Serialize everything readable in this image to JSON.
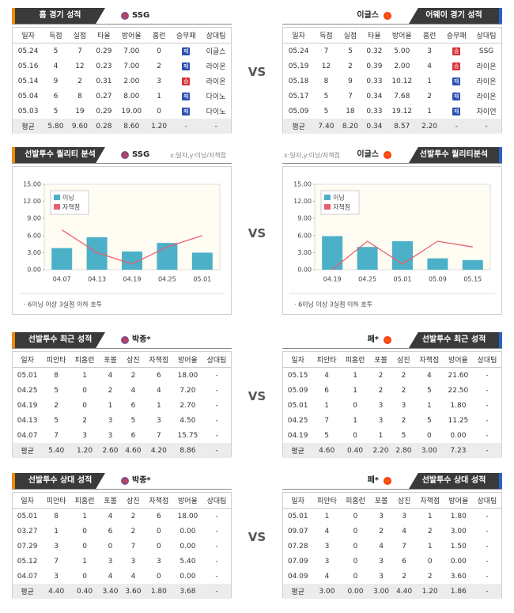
{
  "vs_label": "VS",
  "sections": [
    {
      "left": {
        "tab": "홈 경기 성적",
        "team": "SSG",
        "table": {
          "columns": [
            "일자",
            "득점",
            "실점",
            "타율",
            "방어율",
            "홈런",
            "승무패",
            "상대팀"
          ],
          "rows": [
            [
              "05.24",
              "5",
              "7",
              "0.29",
              "7.00",
              "0",
              {
                "text": "패",
                "color": "#2b4fb0"
              },
              "이글스"
            ],
            [
              "05.16",
              "4",
              "12",
              "0.23",
              "7.00",
              "2",
              {
                "text": "패",
                "color": "#2b4fb0"
              },
              "라이온"
            ],
            [
              "05.14",
              "9",
              "2",
              "0.31",
              "2.00",
              "3",
              {
                "text": "승",
                "color": "#d8323a"
              },
              "라이온"
            ],
            [
              "05.04",
              "6",
              "8",
              "0.27",
              "8.00",
              "1",
              {
                "text": "패",
                "color": "#2b4fb0"
              },
              "다이노"
            ],
            [
              "05.03",
              "5",
              "19",
              "0.29",
              "19.00",
              "0",
              {
                "text": "패",
                "color": "#2b4fb0"
              },
              "다이노"
            ],
            [
              "평균",
              "5.80",
              "9.60",
              "0.28",
              "8.60",
              "1.20",
              "-",
              "-"
            ]
          ]
        }
      },
      "right": {
        "tab": "어웨이 경기 성적",
        "team": "이글스",
        "table": {
          "columns": [
            "일자",
            "득점",
            "실점",
            "타율",
            "방어율",
            "홈런",
            "승무패",
            "상대팀"
          ],
          "rows": [
            [
              "05.24",
              "7",
              "5",
              "0.32",
              "5.00",
              "3",
              {
                "text": "승",
                "color": "#d8323a"
              },
              "SSG"
            ],
            [
              "05.19",
              "12",
              "2",
              "0.39",
              "2.00",
              "4",
              {
                "text": "승",
                "color": "#d8323a"
              },
              "라이온"
            ],
            [
              "05.18",
              "8",
              "9",
              "0.33",
              "10.12",
              "1",
              {
                "text": "패",
                "color": "#2b4fb0"
              },
              "라이온"
            ],
            [
              "05.17",
              "5",
              "7",
              "0.34",
              "7.68",
              "2",
              {
                "text": "패",
                "color": "#2b4fb0"
              },
              "라이온"
            ],
            [
              "05.09",
              "5",
              "18",
              "0.33",
              "19.12",
              "1",
              {
                "text": "패",
                "color": "#2b4fb0"
              },
              "자이언"
            ],
            [
              "평균",
              "7.40",
              "8.20",
              "0.34",
              "8.57",
              "2.20",
              "-",
              "-"
            ]
          ]
        }
      }
    },
    {
      "left": {
        "tab": "선발투수 퀄리티 분석",
        "team": "SSG",
        "axis_note": "x:일자,y:이닝/자책점",
        "note": "· 6이닝 이상 3실점 이하 호투"
      },
      "right": {
        "tab": "선발투수 퀄리티분석",
        "team": "이글스",
        "axis_note": "x:일자,y:이닝/자책점",
        "note": "· 6이닝 이상 3실점 이하 호투"
      }
    },
    {
      "left": {
        "tab": "선발투수 최근 성적",
        "team": "박종*",
        "table": {
          "columns": [
            "일자",
            "피안타",
            "피홈런",
            "포볼",
            "삼진",
            "자책점",
            "방어율",
            "상대팀"
          ],
          "rows": [
            [
              "05.01",
              "8",
              "1",
              "4",
              "2",
              "6",
              "18.00",
              "-"
            ],
            [
              "04.25",
              "5",
              "0",
              "2",
              "4",
              "4",
              "7.20",
              "-"
            ],
            [
              "04.19",
              "2",
              "0",
              "1",
              "6",
              "1",
              "2.70",
              "-"
            ],
            [
              "04.13",
              "5",
              "2",
              "3",
              "5",
              "3",
              "4.50",
              "-"
            ],
            [
              "04.07",
              "7",
              "3",
              "3",
              "6",
              "7",
              "15.75",
              "-"
            ],
            [
              "평균",
              "5.40",
              "1.20",
              "2.60",
              "4.60",
              "4.20",
              "8.86",
              "-"
            ]
          ]
        }
      },
      "right": {
        "tab": "선발투수 최근 성적",
        "team": "페*",
        "table": {
          "columns": [
            "일자",
            "피안타",
            "피홈런",
            "포볼",
            "삼진",
            "자책점",
            "방어율",
            "상대팀"
          ],
          "rows": [
            [
              "05.15",
              "4",
              "1",
              "2",
              "2",
              "4",
              "21.60",
              "-"
            ],
            [
              "05.09",
              "6",
              "1",
              "2",
              "2",
              "5",
              "22.50",
              "-"
            ],
            [
              "05.01",
              "1",
              "0",
              "3",
              "3",
              "1",
              "1.80",
              "-"
            ],
            [
              "04.25",
              "7",
              "1",
              "3",
              "2",
              "5",
              "11.25",
              "-"
            ],
            [
              "04.19",
              "5",
              "0",
              "1",
              "5",
              "0",
              "0.00",
              "-"
            ],
            [
              "평균",
              "4.60",
              "0.40",
              "2.20",
              "2.80",
              "3.00",
              "7.23",
              "-"
            ]
          ]
        }
      }
    },
    {
      "left": {
        "tab": "선발투수 상대 성적",
        "team": "박종*",
        "table": {
          "columns": [
            "일자",
            "피안타",
            "피홈런",
            "포볼",
            "삼진",
            "자책점",
            "방어율",
            "상대팀"
          ],
          "rows": [
            [
              "05.01",
              "8",
              "1",
              "4",
              "2",
              "6",
              "18.00",
              "-"
            ],
            [
              "03.27",
              "1",
              "0",
              "6",
              "2",
              "0",
              "0.00",
              "-"
            ],
            [
              "07.29",
              "3",
              "0",
              "0",
              "7",
              "0",
              "0.00",
              "-"
            ],
            [
              "05.12",
              "7",
              "1",
              "3",
              "3",
              "3",
              "5.40",
              "-"
            ],
            [
              "04.07",
              "3",
              "0",
              "4",
              "4",
              "0",
              "0.00",
              "-"
            ],
            [
              "평균",
              "4.40",
              "0.40",
              "3.40",
              "3.60",
              "1.80",
              "3.68",
              "-"
            ]
          ]
        }
      },
      "right": {
        "tab": "선발투수 상대 성적",
        "team": "페*",
        "table": {
          "columns": [
            "일자",
            "피안타",
            "피홈런",
            "포볼",
            "삼진",
            "자책점",
            "방어율",
            "상대팀"
          ],
          "rows": [
            [
              "05.01",
              "1",
              "0",
              "3",
              "3",
              "1",
              "1.80",
              "-"
            ],
            [
              "09.07",
              "4",
              "0",
              "2",
              "4",
              "2",
              "3.00",
              "-"
            ],
            [
              "07.28",
              "3",
              "0",
              "4",
              "7",
              "1",
              "1.50",
              "-"
            ],
            [
              "07.09",
              "3",
              "0",
              "3",
              "6",
              "0",
              "0.00",
              "-"
            ],
            [
              "04.09",
              "4",
              "0",
              "3",
              "2",
              "2",
              "3.60",
              "-"
            ],
            [
              "평균",
              "3.00",
              "0.00",
              "3.00",
              "4.40",
              "1.20",
              "1.86",
              "-"
            ]
          ]
        }
      }
    }
  ],
  "chart_data": [
    {
      "type": "bar",
      "categories": [
        "04.07",
        "04.13",
        "04.19",
        "04.25",
        "05.01"
      ],
      "series": [
        {
          "name": "이닝",
          "type": "bar",
          "color": "#4bb0c8",
          "values": [
            3.8,
            5.7,
            3.2,
            4.7,
            3.0
          ]
        },
        {
          "name": "자책점",
          "type": "line",
          "color": "#e8606e",
          "values": [
            7,
            3,
            1,
            4,
            6
          ]
        }
      ],
      "ylim": [
        0,
        15
      ],
      "yticks": [
        {
          "value": 0,
          "label": "0.00"
        },
        {
          "value": 3,
          "label": "3.00"
        },
        {
          "value": 6,
          "label": "6.00"
        },
        {
          "value": 9,
          "label": "9.00"
        },
        {
          "value": 12,
          "label": "12.00"
        },
        {
          "value": 15,
          "label": "15.00"
        }
      ],
      "grid": false,
      "legend": "upper left"
    },
    {
      "type": "bar",
      "categories": [
        "04.19",
        "04.25",
        "05.01",
        "05.09",
        "05.15"
      ],
      "series": [
        {
          "name": "이닝",
          "type": "bar",
          "color": "#4bb0c8",
          "values": [
            5.9,
            4.0,
            5.0,
            2.0,
            1.7
          ]
        },
        {
          "name": "자책점",
          "type": "line",
          "color": "#e8606e",
          "values": [
            0,
            5,
            1,
            5,
            4
          ]
        }
      ],
      "ylim": [
        0,
        15
      ],
      "yticks": [
        {
          "value": 0,
          "label": "0.00"
        },
        {
          "value": 3,
          "label": "3.00"
        },
        {
          "value": 6,
          "label": "6.00"
        },
        {
          "value": 9,
          "label": "9.00"
        },
        {
          "value": 12,
          "label": "12.00"
        },
        {
          "value": 15,
          "label": "15.00"
        }
      ],
      "grid": false,
      "legend": "upper left"
    }
  ]
}
